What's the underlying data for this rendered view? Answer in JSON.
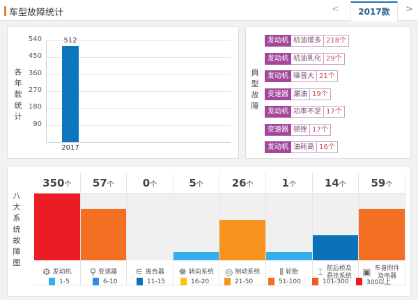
{
  "header": {
    "title": "车型故障统计",
    "prev": "<",
    "tab": "2017款",
    "next": ">"
  },
  "yearly": {
    "ylabel": "各年款统计",
    "chart_data": {
      "type": "bar",
      "categories": [
        "2017"
      ],
      "values": [
        512
      ],
      "yticks": [
        90,
        180,
        270,
        360,
        450,
        540
      ],
      "ylim": [
        0,
        540
      ],
      "color": "#0a76c0"
    }
  },
  "typical": {
    "label": "典型故障",
    "items": [
      {
        "cat": "发动机",
        "name": "机油增多",
        "count": "218个"
      },
      {
        "cat": "发动机",
        "name": "机油乳化",
        "count": "29个"
      },
      {
        "cat": "发动机",
        "name": "噪音大",
        "count": "21个"
      },
      {
        "cat": "变速器",
        "name": "漏油",
        "count": "19个"
      },
      {
        "cat": "发动机",
        "name": "功率不足",
        "count": "17个"
      },
      {
        "cat": "变速器",
        "name": "顿挫",
        "count": "17个"
      },
      {
        "cat": "发动机",
        "name": "油耗高",
        "count": "16个"
      }
    ]
  },
  "systems": {
    "label": "八大系统故障图",
    "unit": "个",
    "items": [
      {
        "value": "350",
        "name": "发动机",
        "icon": "engine-icon",
        "glyph": "⚙",
        "level": 1.0,
        "color": "#ec1c24"
      },
      {
        "value": "57",
        "name": "变速器",
        "icon": "gear-shift-icon",
        "glyph": "⚲",
        "level": 0.77,
        "color": "#f36f21"
      },
      {
        "value": "0",
        "name": "离合器",
        "icon": "clutch-icon",
        "glyph": "⚟",
        "level": 0,
        "color": "#f0f0f0"
      },
      {
        "value": "5",
        "name": "转向系统",
        "icon": "steering-wheel-icon",
        "glyph": "☸",
        "level": 0.12,
        "color": "#35aef0"
      },
      {
        "value": "26",
        "name": "制动系统",
        "icon": "brake-disc-icon",
        "glyph": "◎",
        "level": 0.6,
        "color": "#f7931e"
      },
      {
        "value": "1",
        "name": "轮胎",
        "icon": "tire-icon",
        "glyph": "⦀",
        "level": 0.12,
        "color": "#35aef0"
      },
      {
        "value": "14",
        "name": "前后桥及悬挂系统",
        "icon": "suspension-icon",
        "glyph": "⌶",
        "level": 0.38,
        "color": "#0a72b8"
      },
      {
        "value": "59",
        "name": "车身附件及电器",
        "icon": "battery-icon",
        "glyph": "▣",
        "level": 0.77,
        "color": "#f36f21"
      }
    ]
  },
  "legend": [
    {
      "label": "1-5",
      "color": "#35aef0"
    },
    {
      "label": "6-10",
      "color": "#2e8fe0"
    },
    {
      "label": "11-15",
      "color": "#0a72b8"
    },
    {
      "label": "16-20",
      "color": "#f9c30f"
    },
    {
      "label": "21-50",
      "color": "#f7931e"
    },
    {
      "label": "51-100",
      "color": "#f36f21"
    },
    {
      "label": "101-300",
      "color": "#f15a22"
    },
    {
      "label": "300以上",
      "color": "#ec1c24"
    }
  ]
}
